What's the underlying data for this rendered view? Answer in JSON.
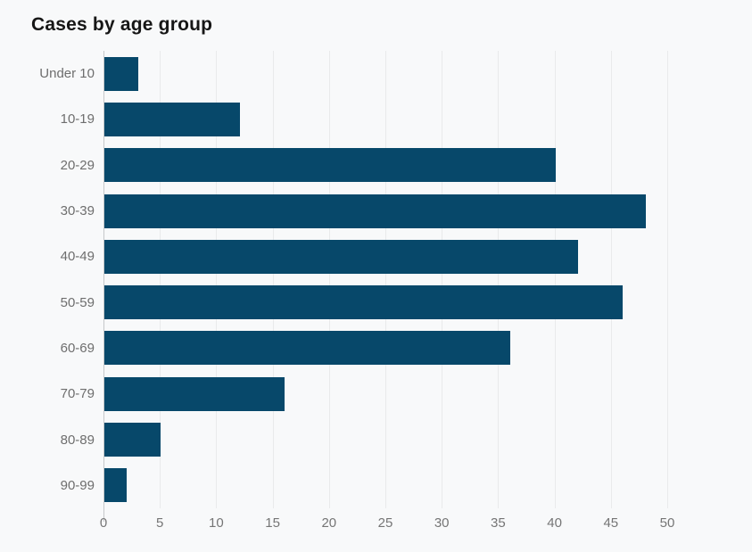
{
  "chart_data": {
    "type": "bar",
    "orientation": "horizontal",
    "title": "Cases by age group",
    "categories": [
      "Under 10",
      "10-19",
      "20-29",
      "30-39",
      "40-49",
      "50-59",
      "60-69",
      "70-79",
      "80-89",
      "90-99"
    ],
    "values": [
      3,
      12,
      40,
      48,
      42,
      46,
      36,
      16,
      5,
      2
    ],
    "xlabel": "",
    "ylabel": "",
    "xlim": [
      0,
      50
    ],
    "xticks": [
      0,
      5,
      10,
      15,
      20,
      25,
      30,
      35,
      40,
      45,
      50
    ],
    "grid": "vertical-only",
    "legend": "none",
    "bar_color": "#07486a",
    "background_color": "#f8f9fa",
    "gridline_color": "#e9eaeb",
    "axis_line_color": "#c6c8ca",
    "category_label_color": "#6e6e6e",
    "tick_label_color": "#757575",
    "title_color": "#161616"
  }
}
